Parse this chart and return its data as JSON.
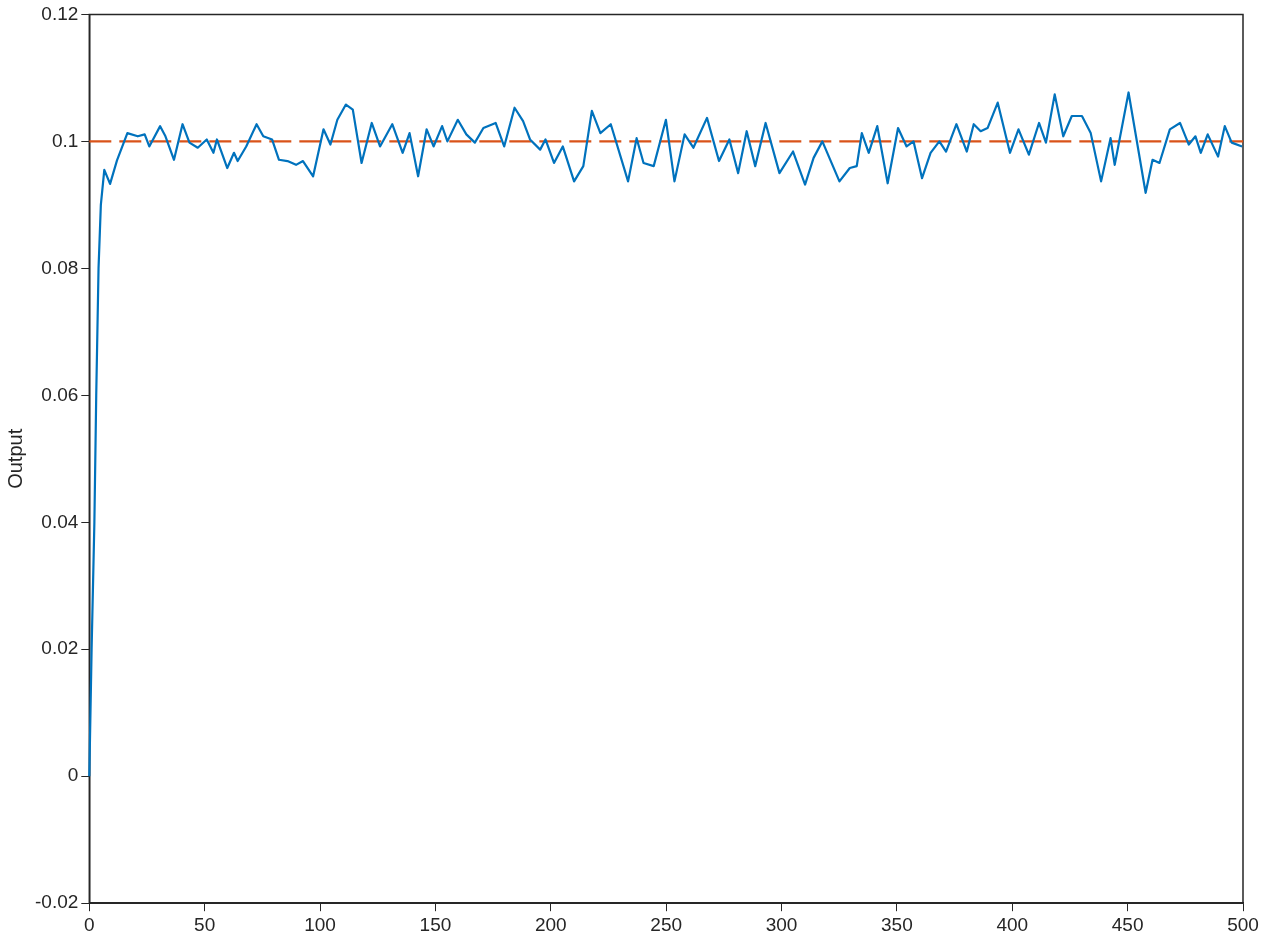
{
  "chart_data": {
    "type": "line",
    "ylabel": "Output",
    "xlim": [
      0,
      500
    ],
    "xticks": [
      0,
      50,
      100,
      150,
      200,
      250,
      300,
      350,
      400,
      450,
      500
    ],
    "ylim": [
      -0.02,
      0.12
    ],
    "yticks": [
      -0.02,
      0,
      0.02,
      0.04,
      0.06,
      0.08,
      0.1,
      0.12
    ],
    "grid": false,
    "legend": false,
    "marker": "none",
    "series": [
      {
        "color": "#0072bd",
        "line_style": "solid",
        "x": [
          0,
          1,
          2.2,
          3,
          4,
          5,
          6.5,
          9,
          12,
          16.5,
          21,
          24,
          26,
          30.7,
          33,
          36.7,
          40.4,
          43.4,
          47,
          50.9,
          53.8,
          55.3,
          59.8,
          62.7,
          64.3,
          68,
          72.5,
          75.4,
          79.2,
          82.2,
          85.9,
          89.6,
          92.6,
          97,
          101.5,
          104.5,
          107.5,
          111.2,
          114.2,
          118,
          122.4,
          126,
          131.3,
          135.8,
          138.8,
          142.5,
          146.2,
          149.2,
          152.9,
          155.2,
          159.7,
          163.4,
          167.1,
          170.8,
          176.1,
          179.8,
          184.3,
          188,
          191,
          195.4,
          197.7,
          201.4,
          205.2,
          210.1,
          214.1,
          217.8,
          221.5,
          226,
          233.5,
          237.2,
          240.2,
          244.6,
          249.9,
          253.6,
          258,
          261.8,
          267.7,
          272.9,
          277.4,
          281.2,
          284.9,
          288.6,
          293.1,
          299.1,
          305,
          310.2,
          313.9,
          317.7,
          325.1,
          329.6,
          332.6,
          334.8,
          337.8,
          341.5,
          346,
          350.5,
          354.2,
          357.2,
          360.9,
          364.6,
          368.4,
          371.3,
          375.8,
          380.3,
          383.3,
          386.3,
          389.3,
          393.7,
          399,
          402.7,
          407.2,
          411.6,
          414.6,
          418.4,
          422.1,
          425.8,
          430.2,
          434,
          438.5,
          442.6,
          444.4,
          450.4,
          457.8,
          460.8,
          463.8,
          468.3,
          472.7,
          476.5,
          479.4,
          481.7,
          484.7,
          489.2,
          492.1,
          495.1,
          499.6
        ],
        "values": [
          0,
          0.02,
          0.04,
          0.06,
          0.08,
          0.09,
          0.0955,
          0.0933,
          0.097,
          0.1013,
          0.1008,
          0.1011,
          0.0992,
          0.1024,
          0.1008,
          0.0971,
          0.1027,
          0.0998,
          0.099,
          0.1003,
          0.0982,
          0.1003,
          0.0958,
          0.0982,
          0.0969,
          0.0992,
          0.1027,
          0.1008,
          0.1003,
          0.0971,
          0.0969,
          0.0963,
          0.0969,
          0.0945,
          0.1019,
          0.0995,
          0.1034,
          0.1058,
          0.105,
          0.0966,
          0.1029,
          0.0992,
          0.1027,
          0.0982,
          0.1013,
          0.0945,
          0.1019,
          0.0992,
          0.1024,
          0.1,
          0.1034,
          0.1011,
          0.0998,
          0.1021,
          0.1029,
          0.0992,
          0.1053,
          0.1032,
          0.1003,
          0.0987,
          0.1003,
          0.0966,
          0.0992,
          0.0937,
          0.0961,
          0.1048,
          0.1013,
          0.1027,
          0.0937,
          0.1005,
          0.0966,
          0.0961,
          0.1034,
          0.0937,
          0.1011,
          0.099,
          0.1037,
          0.0969,
          0.1003,
          0.095,
          0.1016,
          0.0961,
          0.1029,
          0.095,
          0.0984,
          0.0932,
          0.0974,
          0.1,
          0.0937,
          0.0958,
          0.0961,
          0.1013,
          0.0982,
          0.1024,
          0.0934,
          0.1021,
          0.0992,
          0.1,
          0.0942,
          0.0982,
          0.1,
          0.0984,
          0.1027,
          0.0984,
          0.1027,
          0.1016,
          0.1021,
          0.1061,
          0.0982,
          0.1019,
          0.0979,
          0.1029,
          0.0998,
          0.1074,
          0.1008,
          0.104,
          0.104,
          0.1013,
          0.0937,
          0.1005,
          0.0963,
          0.1077,
          0.0919,
          0.0971,
          0.0966,
          0.1019,
          0.1029,
          0.0995,
          0.1008,
          0.0982,
          0.1011,
          0.0976,
          0.1024,
          0.0998,
          0.0992
        ]
      },
      {
        "color": "#d95319",
        "line_style": "dashed",
        "x": [
          0,
          500
        ],
        "values": [
          0.1,
          0.1
        ]
      }
    ]
  }
}
